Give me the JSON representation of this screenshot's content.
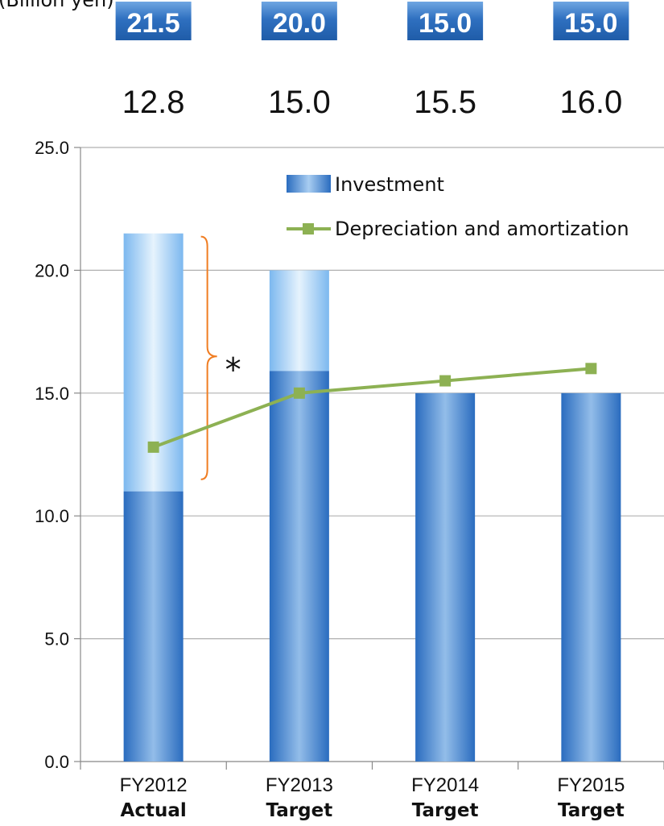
{
  "unit_label": "(Billion yen)",
  "asterisk": "*",
  "colors": {
    "bar_dark": "#2f73c4",
    "bar_light": "#8fc3ef",
    "line": "#8db153",
    "bracket": "#f07d22",
    "box": "#2f70c0"
  },
  "chart_data": {
    "type": "bar",
    "categories": [
      "FY2012",
      "FY2013",
      "FY2014",
      "FY2015"
    ],
    "category_sublabels": [
      "Actual",
      "Target",
      "Target",
      "Target"
    ],
    "series": [
      {
        "name": "Investment",
        "values": [
          21.5,
          20.0,
          15.0,
          15.0
        ],
        "labels": [
          "21.5",
          "20.0",
          "15.0",
          "15.0"
        ],
        "lower_segment": [
          11.0,
          15.9,
          15.0,
          15.0
        ]
      },
      {
        "name": "Depreciation and amortization",
        "type": "line",
        "values": [
          12.8,
          15.0,
          15.5,
          16.0
        ],
        "labels": [
          "12.8",
          "15.0",
          "15.5",
          "16.0"
        ]
      }
    ],
    "ylim": [
      0,
      25
    ],
    "yticks": [
      "0.0",
      "5.0",
      "10.0",
      "15.0",
      "20.0",
      "25.0"
    ],
    "legend_position": "top-right",
    "grid": true
  }
}
